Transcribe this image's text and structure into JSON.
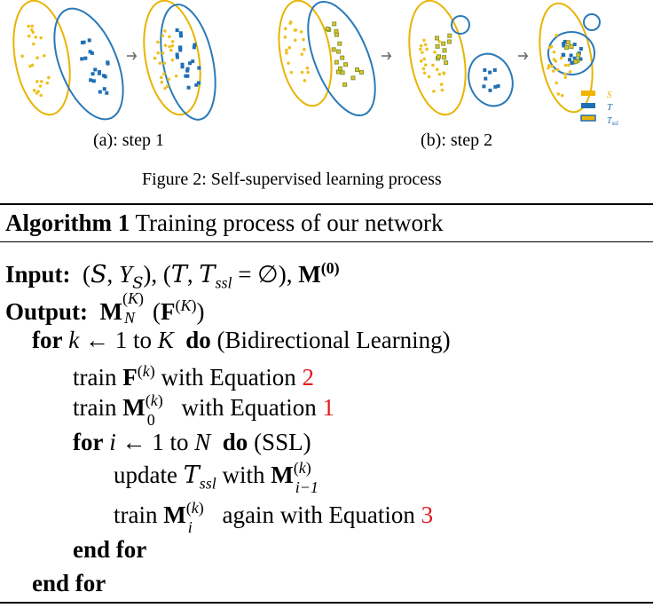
{
  "figure": {
    "caption_a": "(a): step 1",
    "caption_b": "(b): step 2",
    "title": "Figure 2: Self-supervised learning process",
    "legend": [
      {
        "label": "S",
        "color": "#f0b400"
      },
      {
        "label": "T",
        "color": "#1f6fb4"
      },
      {
        "label": "T_ssl",
        "color": "#7a9c3a"
      }
    ],
    "colors": {
      "source": "#f0c020",
      "target": "#1f6fb4",
      "ssl": "#7a9c3a"
    }
  },
  "algorithm": {
    "header_kw": "Algorithm 1",
    "header_text": "Training process of our network",
    "input_kw": "Input:",
    "output_kw": "Output:",
    "for_kw": "for",
    "do_kw": "do",
    "end_for_kw": "end for",
    "bidir_comment": "(Bidirectional Learning)",
    "ssl_comment": "(SSL)",
    "train_word": "train",
    "update_word": "update",
    "with_eq": "with Equation",
    "again_with_eq": "again with Equation",
    "eq_refs": [
      "2",
      "1",
      "3"
    ],
    "to_word": "to"
  }
}
